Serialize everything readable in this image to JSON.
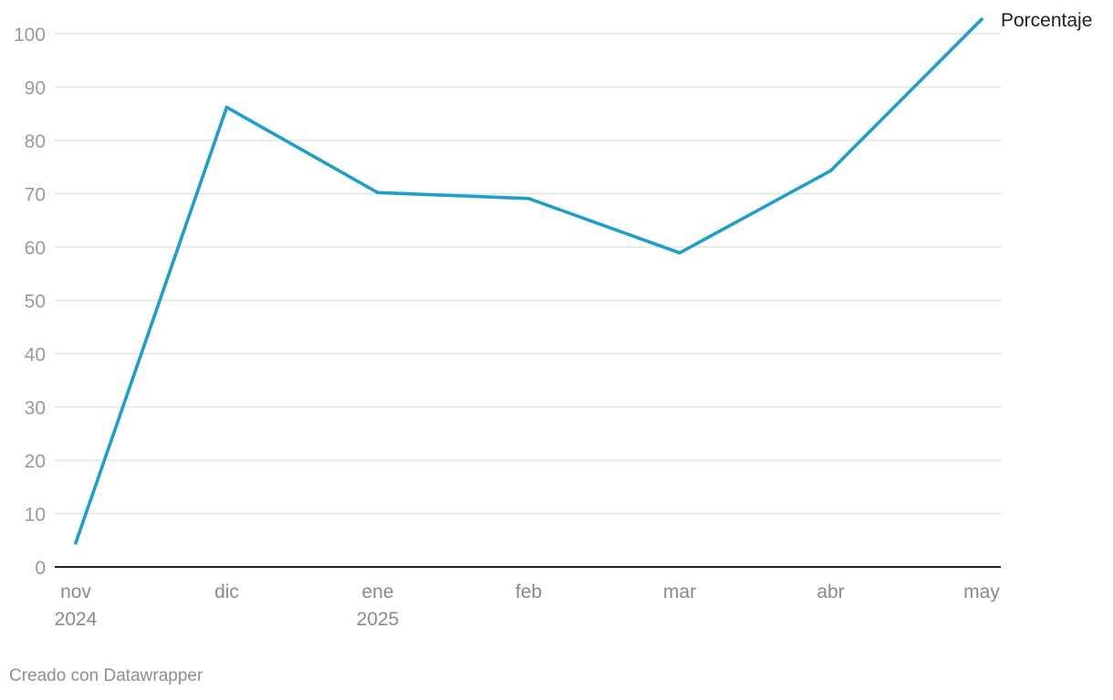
{
  "chart_data": {
    "type": "line",
    "categories": [
      "nov 2024",
      "dic",
      "ene 2025",
      "feb",
      "mar",
      "abr",
      "may"
    ],
    "x_tick_labels": [
      [
        "nov",
        "2024"
      ],
      [
        "dic"
      ],
      [
        "ene",
        "2025"
      ],
      [
        "feb"
      ],
      [
        "mar"
      ],
      [
        "abr"
      ],
      [
        "may"
      ]
    ],
    "series": [
      {
        "name": "Porcentaje",
        "color": "#1f9ec9",
        "values": [
          4.5,
          86.2,
          70.2,
          69.1,
          58.9,
          74.3,
          102.7
        ]
      }
    ],
    "y_ticks": [
      0,
      10,
      20,
      30,
      40,
      50,
      60,
      70,
      80,
      90,
      100
    ],
    "ylim": [
      0,
      100
    ],
    "grid": true,
    "legend": "direct-label-right",
    "title": "",
    "xlabel": "",
    "ylabel": ""
  },
  "footer": {
    "credit": "Creado con Datawrapper"
  }
}
